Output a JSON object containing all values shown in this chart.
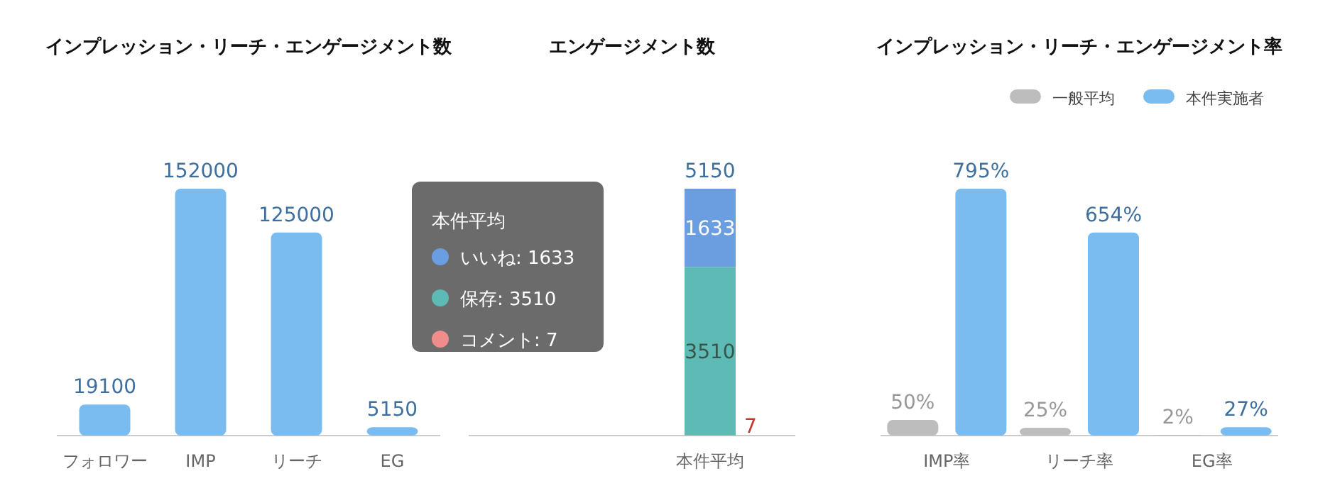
{
  "chart_data": [
    {
      "type": "bar",
      "title": "インプレッション・リーチ・エンゲージメント数",
      "categories": [
        "フォロワー",
        "IMP",
        "リーチ",
        "EG"
      ],
      "values": [
        19100,
        152000,
        125000,
        5150
      ],
      "color": "#7bbcf0",
      "data_labels": true
    },
    {
      "type": "bar",
      "stacked": true,
      "title": "エンゲージメント数",
      "categories": [
        "本件平均"
      ],
      "series": [
        {
          "name": "コメント: 7",
          "color": "#f08c8c",
          "values": [
            7
          ]
        },
        {
          "name": "保存: 3510",
          "color": "#5dbab5",
          "values": [
            3510
          ]
        },
        {
          "name": "いいね: 1633",
          "color": "#6a9ee0",
          "values": [
            1633
          ]
        }
      ],
      "totals": [
        "5150"
      ],
      "data_labels": true,
      "legend": "left",
      "legend_title": "本件平均"
    },
    {
      "type": "bar",
      "title": "インプレッション・リーチ・エンゲージメント率",
      "categories": [
        "IMP率",
        "リーチ率",
        "EG率"
      ],
      "series": [
        {
          "name": "一般平均",
          "color": "#bdbdbd",
          "values": [
            50,
            25,
            2
          ],
          "value_labels": [
            "50%",
            "25%",
            "2%"
          ]
        },
        {
          "name": "本件実施者",
          "color": "#7bbcf0",
          "values": [
            795,
            654,
            27
          ],
          "value_labels": [
            "795%",
            "654%",
            "27%"
          ]
        }
      ],
      "legend": "top right"
    }
  ]
}
